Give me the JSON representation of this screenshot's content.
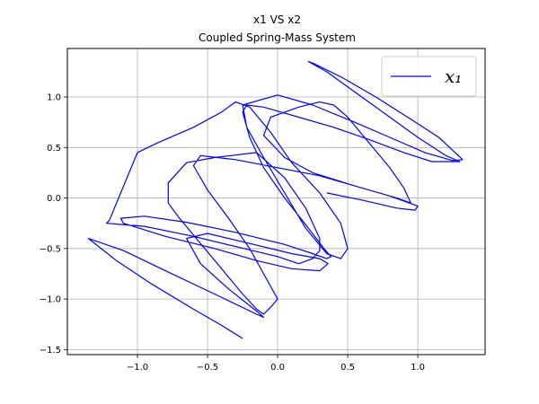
{
  "chart_data": {
    "type": "line",
    "title": "x1 VS x2",
    "subtitle": "Coupled Spring-Mass System",
    "xlabel": "",
    "ylabel": "",
    "xlim": [
      -1.5,
      1.48
    ],
    "ylim": [
      -1.55,
      1.48
    ],
    "grid": true,
    "legend_position": "top-right",
    "xticks": [
      -1.0,
      -0.5,
      0.0,
      0.5,
      1.0
    ],
    "xtick_labels": [
      "−1.0",
      "−0.5",
      "0.0",
      "0.5",
      "1.0"
    ],
    "yticks": [
      -1.5,
      -1.0,
      -0.5,
      0.0,
      0.5,
      1.0
    ],
    "ytick_labels": [
      "−1.5",
      "−1.0",
      "−0.5",
      "0.0",
      "0.5",
      "1.0"
    ],
    "series": [
      {
        "name": "x₁",
        "color": "#0000ff",
        "points": [
          [
            -0.25,
            -1.39
          ],
          [
            -0.4,
            -1.26
          ],
          [
            -0.6,
            -1.1
          ],
          [
            -0.9,
            -0.85
          ],
          [
            -1.15,
            -0.62
          ],
          [
            -1.35,
            -0.4
          ],
          [
            -1.1,
            -0.52
          ],
          [
            -0.8,
            -0.72
          ],
          [
            -0.45,
            -0.95
          ],
          [
            -0.15,
            -1.15
          ],
          [
            -0.1,
            -1.18
          ],
          [
            -0.15,
            -1.12
          ],
          [
            -0.35,
            -0.9
          ],
          [
            -0.55,
            -0.65
          ],
          [
            -0.65,
            -0.4
          ],
          [
            -0.5,
            -0.35
          ],
          [
            -0.2,
            -0.45
          ],
          [
            0.1,
            -0.55
          ],
          [
            0.3,
            -0.6
          ],
          [
            0.36,
            -0.65
          ],
          [
            0.3,
            -0.72
          ],
          [
            0.1,
            -0.7
          ],
          [
            -0.15,
            -0.62
          ],
          [
            -0.45,
            -0.5
          ],
          [
            -0.8,
            -0.38
          ],
          [
            -1.1,
            -0.25
          ],
          [
            -1.12,
            -0.2
          ],
          [
            -0.95,
            -0.18
          ],
          [
            -0.65,
            -0.24
          ],
          [
            -0.3,
            -0.34
          ],
          [
            0.05,
            -0.46
          ],
          [
            0.25,
            -0.55
          ],
          [
            0.35,
            -0.6
          ],
          [
            0.38,
            -0.58
          ],
          [
            0.33,
            -0.5
          ],
          [
            0.22,
            -0.3
          ],
          [
            0.05,
            0.0
          ],
          [
            -0.1,
            0.3
          ],
          [
            -0.2,
            0.6
          ],
          [
            -0.25,
            0.85
          ],
          [
            -0.22,
            0.92
          ],
          [
            -0.1,
            0.9
          ],
          [
            0.15,
            0.8
          ],
          [
            0.4,
            0.7
          ],
          [
            0.65,
            0.58
          ],
          [
            0.9,
            0.45
          ],
          [
            1.1,
            0.36
          ],
          [
            1.3,
            0.36
          ],
          [
            1.2,
            0.42
          ],
          [
            1.0,
            0.6
          ],
          [
            0.8,
            0.8
          ],
          [
            0.55,
            1.05
          ],
          [
            0.35,
            1.25
          ],
          [
            0.22,
            1.35
          ],
          [
            0.26,
            1.33
          ],
          [
            0.45,
            1.2
          ],
          [
            0.7,
            1.0
          ],
          [
            0.95,
            0.78
          ],
          [
            1.15,
            0.6
          ],
          [
            1.32,
            0.38
          ],
          [
            1.25,
            0.37
          ],
          [
            1.05,
            0.45
          ],
          [
            0.8,
            0.6
          ],
          [
            0.55,
            0.75
          ],
          [
            0.25,
            0.92
          ],
          [
            0.0,
            1.02
          ],
          [
            -0.25,
            0.92
          ],
          [
            -0.22,
            0.7
          ],
          [
            -0.1,
            0.4
          ],
          [
            0.05,
            0.05
          ],
          [
            0.2,
            -0.3
          ],
          [
            0.35,
            -0.55
          ],
          [
            0.45,
            -0.6
          ],
          [
            0.5,
            -0.5
          ],
          [
            0.45,
            -0.25
          ],
          [
            0.3,
            0.05
          ],
          [
            0.1,
            0.35
          ],
          [
            -0.05,
            0.65
          ],
          [
            -0.2,
            0.9
          ],
          [
            -0.3,
            0.95
          ],
          [
            -0.4,
            0.85
          ],
          [
            -0.6,
            0.7
          ],
          [
            -0.85,
            0.55
          ],
          [
            -1.0,
            0.45
          ],
          [
            -1.2,
            -0.22
          ],
          [
            -1.22,
            -0.25
          ],
          [
            -0.95,
            -0.28
          ],
          [
            -0.6,
            -0.38
          ],
          [
            -0.3,
            -0.48
          ],
          [
            0.0,
            -0.58
          ],
          [
            0.15,
            -0.65
          ],
          [
            0.25,
            -0.6
          ],
          [
            0.3,
            -0.52
          ],
          [
            0.3,
            -0.4
          ],
          [
            0.2,
            -0.1
          ],
          [
            0.05,
            0.2
          ],
          [
            -0.15,
            0.45
          ],
          [
            -0.45,
            0.4
          ],
          [
            -0.65,
            0.35
          ],
          [
            -0.78,
            0.15
          ],
          [
            -0.78,
            -0.05
          ],
          [
            -0.7,
            -0.2
          ],
          [
            -0.55,
            -0.45
          ],
          [
            -0.4,
            -0.7
          ],
          [
            -0.25,
            -0.95
          ],
          [
            -0.15,
            -1.1
          ],
          [
            -0.1,
            -1.15
          ],
          [
            -0.05,
            -1.08
          ],
          [
            0.0,
            -1.0
          ],
          [
            -0.1,
            -0.75
          ],
          [
            -0.2,
            -0.5
          ],
          [
            -0.35,
            -0.2
          ],
          [
            -0.5,
            0.08
          ],
          [
            -0.6,
            0.32
          ],
          [
            -0.55,
            0.42
          ],
          [
            -0.3,
            0.38
          ],
          [
            0.0,
            0.3
          ],
          [
            0.3,
            0.22
          ],
          [
            0.6,
            0.1
          ],
          [
            0.85,
            0.0
          ],
          [
            0.95,
            -0.05
          ],
          [
            0.9,
            0.1
          ],
          [
            0.8,
            0.3
          ],
          [
            0.65,
            0.55
          ],
          [
            0.5,
            0.8
          ],
          [
            0.4,
            0.92
          ],
          [
            0.3,
            0.95
          ],
          [
            0.15,
            0.9
          ],
          [
            -0.05,
            0.8
          ],
          [
            -0.1,
            0.62
          ],
          [
            0.05,
            0.4
          ],
          [
            0.25,
            0.25
          ],
          [
            0.55,
            0.12
          ],
          [
            0.8,
            0.02
          ],
          [
            0.9,
            -0.03
          ],
          [
            1.0,
            -0.08
          ],
          [
            0.98,
            -0.12
          ],
          [
            0.85,
            -0.1
          ],
          [
            0.6,
            -0.02
          ],
          [
            0.35,
            0.05
          ]
        ]
      }
    ]
  }
}
